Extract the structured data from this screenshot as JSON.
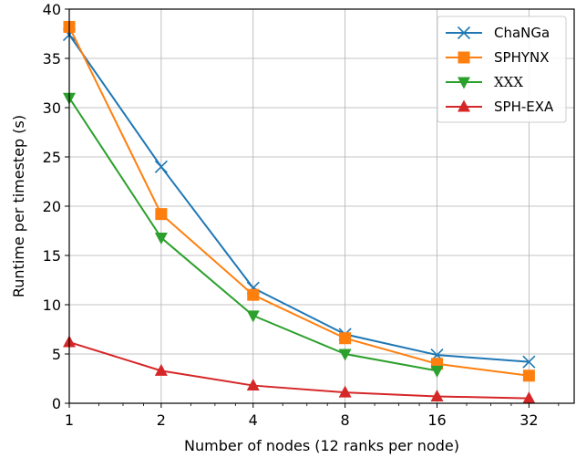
{
  "chart_data": {
    "type": "line",
    "xlabel": "Number of nodes (12 ranks per node)",
    "ylabel": "Runtime per timestep (s)",
    "x_scale": "log2",
    "x": [
      1,
      2,
      4,
      8,
      16,
      32
    ],
    "x_tick_labels": [
      "1",
      "2",
      "4",
      "8",
      "16",
      "32"
    ],
    "xlim": [
      1,
      45
    ],
    "ylim": [
      0,
      40
    ],
    "y_ticks": [
      0,
      5,
      10,
      15,
      20,
      25,
      30,
      35,
      40
    ],
    "grid": true,
    "legend_position": "top-right",
    "series": [
      {
        "name": "ChaNGa",
        "values": [
          37.4,
          24.0,
          11.7,
          7.0,
          4.9,
          4.2
        ],
        "color": "#1f77b4",
        "marker": "x"
      },
      {
        "name": "SPHYNX",
        "values": [
          38.2,
          19.2,
          11.0,
          6.6,
          4.0,
          2.8
        ],
        "color": "#ff7f0e",
        "marker": "square"
      },
      {
        "name": "XXX",
        "values": [
          31.0,
          16.8,
          8.9,
          5.0,
          3.3,
          null
        ],
        "color": "#2ca02c",
        "marker": "triangle-down"
      },
      {
        "name": "SPH-EXA",
        "values": [
          6.2,
          3.3,
          1.8,
          1.1,
          0.7,
          0.5
        ],
        "color": "#d62728",
        "marker": "triangle-up"
      }
    ]
  }
}
